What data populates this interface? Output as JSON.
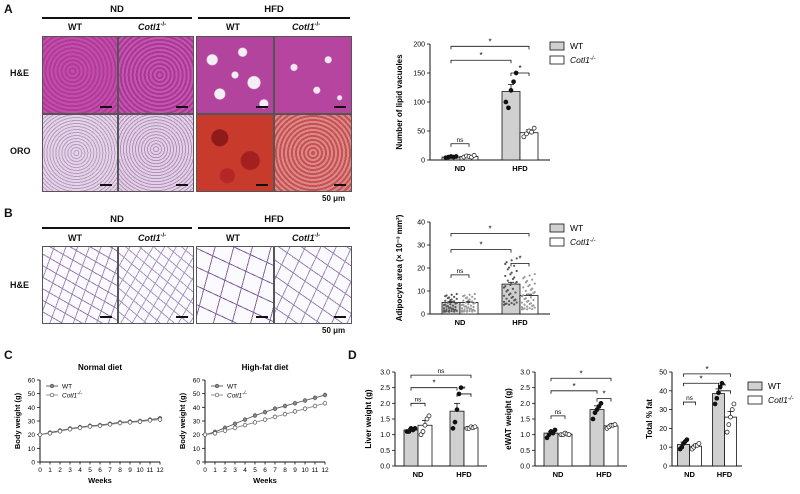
{
  "panels": {
    "A": {
      "letter": "A",
      "groups": [
        "ND",
        "HFD"
      ],
      "columns": [
        "WT",
        "Cotl1",
        "WT",
        "Cotl1"
      ],
      "ko_sup": "-/-",
      "rows": [
        "H&E",
        "ORO"
      ],
      "scale": "50 μm"
    },
    "B": {
      "letter": "B",
      "groups": [
        "ND",
        "HFD"
      ],
      "columns": [
        "WT",
        "Cotl1",
        "WT",
        "Cotl1"
      ],
      "ko_sup": "-/-",
      "row": "H&E",
      "scale": "50 μm"
    },
    "C": {
      "letter": "C"
    },
    "D": {
      "letter": "D"
    }
  },
  "legend": {
    "wt": "WT",
    "ko": "Cotl1",
    "ko_sup": "-/-"
  },
  "sig": {
    "ns": "ns",
    "star": "*"
  },
  "chart_data": [
    {
      "id": "lipid-vacuoles",
      "type": "bar",
      "ylabel": "Number of lipid vacuoles",
      "categories": [
        "ND",
        "HFD"
      ],
      "ylim": [
        0,
        200
      ],
      "yticks": [
        0,
        50,
        100,
        150,
        200
      ],
      "series": [
        {
          "name": "WT",
          "values": [
            5,
            118
          ],
          "sem": [
            1,
            12
          ],
          "points": [
            [
              4,
              5,
              6,
              5,
              6
            ],
            [
              100,
              90,
              120,
              135,
              150
            ]
          ]
        },
        {
          "name": "Cotl1-/-",
          "values": [
            6,
            47
          ],
          "sem": [
            1,
            5
          ],
          "points": [
            [
              5,
              7,
              6,
              5,
              8
            ],
            [
              40,
              45,
              50,
              48,
              55
            ]
          ]
        }
      ]
    },
    {
      "id": "adipocyte-area",
      "type": "bar",
      "ylabel": "Adipocyte area (× 10⁻³ mm²)",
      "categories": [
        "ND",
        "HFD"
      ],
      "ylim": [
        0,
        40
      ],
      "yticks": [
        0,
        10,
        20,
        30,
        40
      ],
      "series": [
        {
          "name": "WT",
          "values": [
            5,
            13
          ],
          "sem": [
            0.4,
            0.8
          ],
          "spread": [
            [
              1,
              9
            ],
            [
              4,
              25
            ]
          ]
        },
        {
          "name": "Cotl1-/-",
          "values": [
            5,
            8
          ],
          "sem": [
            0.4,
            0.6
          ],
          "spread": [
            [
              1,
              9
            ],
            [
              2,
              18
            ]
          ]
        }
      ]
    },
    {
      "id": "bw-normal",
      "type": "line",
      "title": "Normal diet",
      "xlabel": "Weeks",
      "ylabel": "Body weight (g)",
      "ylim": [
        0,
        60
      ],
      "yticks": [
        0,
        10,
        20,
        30,
        40,
        50,
        60
      ],
      "x": [
        0,
        1,
        2,
        3,
        4,
        5,
        6,
        7,
        8,
        9,
        10,
        11,
        12
      ],
      "series": [
        {
          "name": "WT",
          "values": [
            20,
            21.5,
            23,
            24.5,
            25.5,
            26.5,
            27,
            28,
            29,
            29.5,
            30,
            31,
            32
          ]
        },
        {
          "name": "Cotl1-/-",
          "values": [
            20,
            21,
            22.5,
            24,
            25,
            26,
            26.5,
            27.5,
            28.5,
            29,
            29.5,
            30.5,
            31
          ]
        }
      ]
    },
    {
      "id": "bw-hfd",
      "type": "line",
      "title": "High-fat diet",
      "xlabel": "Weeks",
      "ylabel": "Body weight (g)",
      "ylim": [
        0,
        60
      ],
      "yticks": [
        0,
        10,
        20,
        30,
        40,
        50,
        60
      ],
      "x": [
        0,
        1,
        2,
        3,
        4,
        5,
        6,
        7,
        8,
        9,
        10,
        11,
        12
      ],
      "series": [
        {
          "name": "WT",
          "values": [
            20,
            22,
            25,
            28,
            31,
            34,
            36.5,
            39,
            41,
            43,
            45,
            47,
            49
          ]
        },
        {
          "name": "Cotl1-/-",
          "values": [
            20,
            21,
            23,
            25,
            27,
            29,
            31,
            33,
            35,
            37,
            39,
            41,
            43
          ]
        }
      ]
    },
    {
      "id": "liver-weight",
      "type": "bar",
      "ylabel": "Liver weight (g)",
      "categories": [
        "ND",
        "HFD"
      ],
      "ylim": [
        0,
        3.0
      ],
      "yticks": [
        0.0,
        0.5,
        1.0,
        1.5,
        2.0,
        2.5,
        3.0
      ],
      "series": [
        {
          "name": "WT",
          "values": [
            1.15,
            1.75
          ],
          "sem": [
            0.05,
            0.25
          ],
          "points": [
            [
              1.1,
              1.1,
              1.2,
              1.15,
              1.2
            ],
            [
              1.2,
              1.4,
              1.8,
              2.3,
              2.5
            ]
          ]
        },
        {
          "name": "Cotl1-/-",
          "values": [
            1.3,
            1.22
          ],
          "sem": [
            0.15,
            0.03
          ],
          "points": [
            [
              1.0,
              1.1,
              1.3,
              1.5,
              1.6
            ],
            [
              1.2,
              1.2,
              1.25,
              1.22,
              1.25
            ]
          ]
        }
      ]
    },
    {
      "id": "ewat-weight",
      "type": "bar",
      "ylabel": "eWAT weight (g)",
      "categories": [
        "ND",
        "HFD"
      ],
      "ylim": [
        0,
        3.0
      ],
      "yticks": [
        0.0,
        0.5,
        1.0,
        1.5,
        2.0,
        2.5,
        3.0
      ],
      "series": [
        {
          "name": "WT",
          "values": [
            1.05,
            1.8
          ],
          "sem": [
            0.06,
            0.12
          ],
          "points": [
            [
              0.9,
              1.0,
              1.1,
              1.05,
              1.15
            ],
            [
              1.5,
              1.7,
              1.8,
              1.9,
              2.0
            ]
          ]
        },
        {
          "name": "Cotl1-/-",
          "values": [
            1.02,
            1.28
          ],
          "sem": [
            0.02,
            0.04
          ],
          "points": [
            [
              1.0,
              1.0,
              1.05,
              1.02,
              1.0
            ],
            [
              1.2,
              1.25,
              1.3,
              1.3,
              1.32
            ]
          ]
        }
      ]
    },
    {
      "id": "total-fat",
      "type": "bar",
      "ylabel": "Total % fat",
      "categories": [
        "ND",
        "HFD"
      ],
      "ylim": [
        0,
        50
      ],
      "yticks": [
        0,
        10,
        20,
        30,
        40,
        50
      ],
      "series": [
        {
          "name": "WT",
          "values": [
            11.5,
            38.5
          ],
          "sem": [
            1.2,
            2.5
          ],
          "points": [
            [
              9,
              10,
              12,
              13,
              14
            ],
            [
              33,
              36,
              39,
              42,
              44
            ]
          ]
        },
        {
          "name": "Cotl1-/-",
          "values": [
            10.5,
            26
          ],
          "sem": [
            0.8,
            3
          ],
          "points": [
            [
              9,
              10,
              11,
              11,
              12
            ],
            [
              18,
              22,
              26,
              30,
              33
            ]
          ]
        }
      ]
    }
  ]
}
